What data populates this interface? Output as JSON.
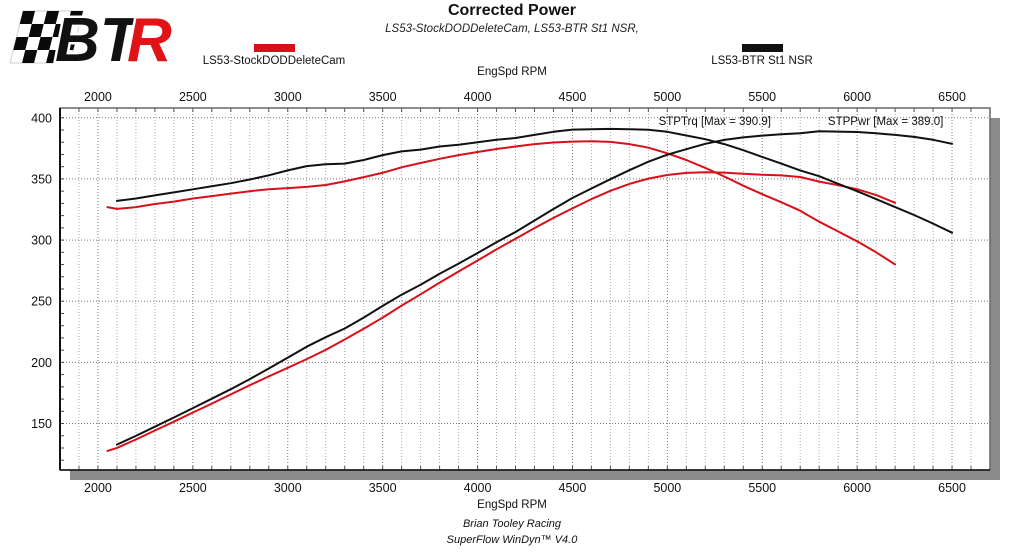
{
  "header": {
    "title": "Corrected Power",
    "subtitle": "LS53-StockDODDeleteCam, LS53-BTR St1 NSR,"
  },
  "logo": {
    "text_black": "BT",
    "text_red": "R",
    "black": "#111111",
    "red": "#e01318"
  },
  "legend": [
    {
      "label": "LS53-StockDODDeleteCam",
      "color": "#d8101a"
    },
    {
      "label": "LS53-BTR St1 NSR",
      "color": "#111111"
    }
  ],
  "footer": {
    "line1": "Brian Tooley Racing",
    "line2": "SuperFlow WinDyn™ V4.0"
  },
  "chart_data": {
    "type": "line",
    "title": "Corrected Power",
    "subtitle": "LS53-StockDODDeleteCam, LS53-BTR St1 NSR,",
    "grid": true,
    "legend_position": "top",
    "x_axis": {
      "label_top": "EngSpd RPM",
      "label_bottom": "EngSpd RPM",
      "lim": [
        1800,
        6700
      ],
      "major_ticks": [
        2000,
        2500,
        3000,
        3500,
        4000,
        4500,
        5000,
        5500,
        6000,
        6500
      ],
      "minor_step": 100
    },
    "y_axis": {
      "lim": [
        112,
        408
      ],
      "major_ticks": [
        150,
        200,
        250,
        300,
        350,
        400
      ],
      "minor_step": 10
    },
    "annotations": [
      {
        "text": "STPTrq [Max = 390.9]",
        "x": 5250,
        "y": 397.5
      },
      {
        "text": "STPPwr [Max = 389.0]",
        "x": 6150,
        "y": 397.5
      }
    ],
    "series": [
      {
        "name": "LS53-StockDODDeleteCam STPTrq",
        "run": "LS53-StockDODDeleteCam",
        "measure": "STPTrq",
        "color": "#d8101a",
        "rpm": [
          2050,
          2100,
          2200,
          2300,
          2400,
          2500,
          2600,
          2700,
          2800,
          2900,
          3000,
          3100,
          3200,
          3300,
          3400,
          3500,
          3600,
          3700,
          3800,
          3900,
          4000,
          4100,
          4200,
          4300,
          4400,
          4500,
          4600,
          4700,
          4800,
          4900,
          5000,
          5100,
          5200,
          5300,
          5400,
          5500,
          5600,
          5700,
          5800,
          5900,
          6000,
          6100,
          6200
        ],
        "values": [
          327,
          325.5,
          327,
          329.5,
          331.5,
          334,
          336,
          338,
          340,
          341.5,
          342.5,
          343.5,
          345,
          348,
          351.5,
          355,
          359.5,
          363,
          366.5,
          369.5,
          372,
          374.5,
          376.5,
          378.5,
          379.8,
          380.5,
          380.8,
          380.3,
          378.5,
          375.5,
          371,
          365.5,
          359,
          352,
          344.5,
          337.5,
          331,
          324,
          315,
          307,
          299,
          290,
          280
        ]
      },
      {
        "name": "LS53-StockDODDeleteCam STPPwr",
        "run": "LS53-StockDODDeleteCam",
        "measure": "STPPwr",
        "color": "#d8101a",
        "rpm": [
          2050,
          2100,
          2200,
          2300,
          2400,
          2500,
          2600,
          2700,
          2800,
          2900,
          3000,
          3100,
          3200,
          3300,
          3400,
          3500,
          3600,
          3700,
          3800,
          3900,
          4000,
          4100,
          4200,
          4300,
          4400,
          4500,
          4600,
          4700,
          4800,
          4900,
          5000,
          5100,
          5200,
          5300,
          5400,
          5500,
          5600,
          5700,
          5800,
          5900,
          6000,
          6100,
          6200
        ],
        "values": [
          127.6,
          130.1,
          136.9,
          144.3,
          151.5,
          159,
          166.3,
          173.8,
          181.3,
          188.5,
          195.6,
          202.7,
          210.2,
          218.7,
          227.5,
          236.6,
          246.4,
          255.7,
          265.2,
          274.3,
          283.3,
          292.4,
          301.1,
          309.8,
          318.1,
          325.9,
          333.5,
          340.3,
          345.9,
          350.3,
          353.2,
          354.9,
          355.4,
          355.2,
          354.2,
          353.4,
          352.9,
          351.6,
          347.8,
          344.9,
          341.6,
          336.8,
          330.5
        ]
      },
      {
        "name": "LS53-BTR St1 NSR STPTrq",
        "run": "LS53-BTR St1 NSR",
        "measure": "STPTrq",
        "max": 390.9,
        "color": "#111111",
        "rpm": [
          2100,
          2200,
          2300,
          2400,
          2500,
          2600,
          2700,
          2800,
          2900,
          3000,
          3100,
          3200,
          3300,
          3400,
          3500,
          3600,
          3700,
          3800,
          3900,
          4000,
          4100,
          4200,
          4300,
          4400,
          4500,
          4600,
          4700,
          4800,
          4900,
          5000,
          5100,
          5200,
          5300,
          5400,
          5500,
          5600,
          5700,
          5800,
          5900,
          6000,
          6100,
          6200,
          6300,
          6400,
          6500
        ],
        "values": [
          332,
          334,
          336.5,
          339,
          341.5,
          344,
          346.5,
          349.5,
          353,
          357,
          360.5,
          362,
          362.5,
          365.5,
          369.5,
          372.5,
          374,
          376.5,
          378,
          380,
          382,
          383.5,
          386,
          388.5,
          390.3,
          390.7,
          390.9,
          390.7,
          390.2,
          388.5,
          385.5,
          382.5,
          378.5,
          373.5,
          368,
          362.5,
          357,
          352.2,
          346,
          340,
          333.5,
          327,
          320.5,
          313.5,
          306
        ]
      },
      {
        "name": "LS53-BTR St1 NSR STPPwr",
        "run": "LS53-BTR St1 NSR",
        "measure": "STPPwr",
        "max": 389.0,
        "color": "#111111",
        "rpm": [
          2100,
          2200,
          2300,
          2400,
          2500,
          2600,
          2700,
          2800,
          2900,
          3000,
          3100,
          3200,
          3300,
          3400,
          3500,
          3600,
          3700,
          3800,
          3900,
          4000,
          4100,
          4200,
          4300,
          4400,
          4500,
          4600,
          4700,
          4800,
          4900,
          5000,
          5100,
          5200,
          5300,
          5400,
          5500,
          5600,
          5700,
          5800,
          5900,
          6000,
          6100,
          6200,
          6300,
          6400,
          6500
        ],
        "values": [
          132.8,
          139.9,
          147.4,
          154.9,
          162.6,
          170.3,
          178.1,
          186.3,
          195,
          203.9,
          212.8,
          220.6,
          227.7,
          236.6,
          246.2,
          255.3,
          263.4,
          272.4,
          280.8,
          289.4,
          298.2,
          306.6,
          316,
          325.4,
          334.4,
          342.2,
          349.8,
          357.1,
          364.1,
          369.8,
          374.3,
          378.7,
          381.9,
          384,
          385.4,
          386.5,
          387.4,
          389,
          388.7,
          388.4,
          387.3,
          386,
          384.4,
          382,
          378.7
        ]
      }
    ]
  }
}
